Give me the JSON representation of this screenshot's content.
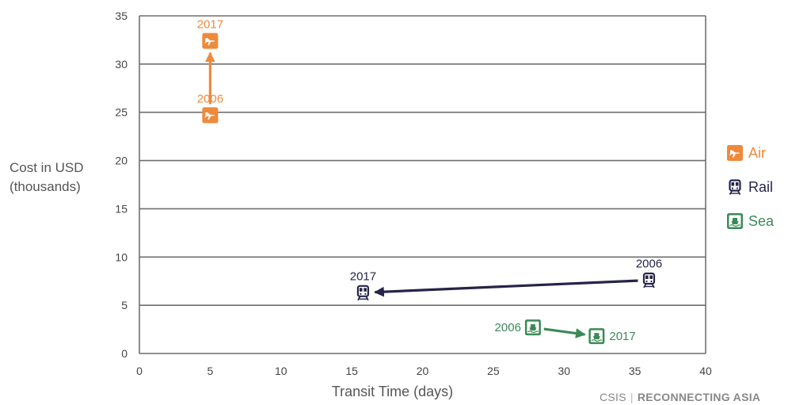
{
  "chart_data": {
    "type": "scatter",
    "xlabel": "Transit Time (days)",
    "ylabel": "Cost in USD (thousands)",
    "xlim": [
      0,
      40
    ],
    "ylim": [
      0,
      35
    ],
    "xticks": [
      "0",
      "5",
      "10",
      "15",
      "20",
      "25",
      "30",
      "35",
      "40"
    ],
    "yticks": [
      "0",
      "5",
      "10",
      "15",
      "20",
      "25",
      "30",
      "35"
    ],
    "grid": "horizontal",
    "legend_position": "right",
    "series": [
      {
        "name": "Air",
        "color": "#EE8A3C",
        "icon": "airplane-icon",
        "points": [
          {
            "label": "2006",
            "x": 5,
            "y": 24.7
          },
          {
            "label": "2017",
            "x": 5,
            "y": 32.4
          }
        ]
      },
      {
        "name": "Rail",
        "color": "#262449",
        "icon": "train-icon",
        "points": [
          {
            "label": "2006",
            "x": 36,
            "y": 7.6
          },
          {
            "label": "2017",
            "x": 15.8,
            "y": 6.3
          }
        ]
      },
      {
        "name": "Sea",
        "color": "#3C8A57",
        "icon": "ship-icon",
        "points": [
          {
            "label": "2006",
            "x": 27.8,
            "y": 2.7
          },
          {
            "label": "2017",
            "x": 32.3,
            "y": 1.8
          }
        ]
      }
    ]
  },
  "ylabel_lines": [
    "Cost in USD",
    "(thousands)"
  ],
  "legend": [
    {
      "label": "Air",
      "color": "#EE8A3C",
      "icon": "airplane-icon"
    },
    {
      "label": "Rail",
      "color": "#262449",
      "icon": "train-icon"
    },
    {
      "label": "Sea",
      "color": "#3C8A57",
      "icon": "ship-icon"
    }
  ],
  "source": {
    "org": "CSIS",
    "project": "RECONNECTING ASIA"
  }
}
